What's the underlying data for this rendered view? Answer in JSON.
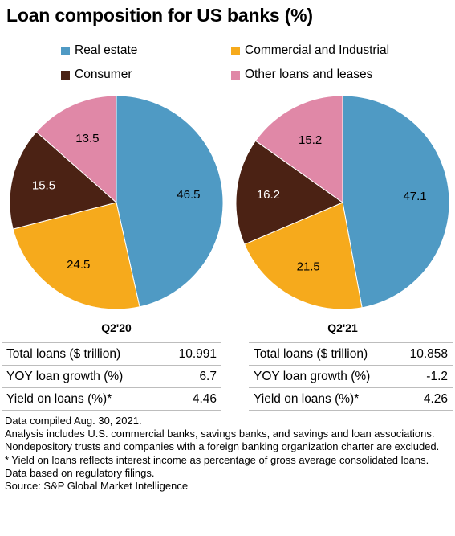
{
  "title": "Loan composition for US banks (%)",
  "legend": [
    {
      "label": "Real estate",
      "color": "#4f9ac4"
    },
    {
      "label": "Commercial and Industrial",
      "color": "#f6aa1c"
    },
    {
      "label": "Consumer",
      "color": "#4b2214"
    },
    {
      "label": "Other loans and leases",
      "color": "#e088a7"
    }
  ],
  "chart_data": [
    {
      "type": "pie",
      "title": "Q2'20",
      "categories": [
        "Real estate",
        "Commercial and Industrial",
        "Consumer",
        "Other loans and leases"
      ],
      "values": [
        46.5,
        24.5,
        15.5,
        13.5
      ],
      "labels": [
        "46.5",
        "24.5",
        "15.5",
        "13.5"
      ],
      "colors": [
        "#4f9ac4",
        "#f6aa1c",
        "#4b2214",
        "#e088a7"
      ]
    },
    {
      "type": "pie",
      "title": "Q2'21",
      "categories": [
        "Real estate",
        "Commercial and Industrial",
        "Consumer",
        "Other loans and leases"
      ],
      "values": [
        47.1,
        21.5,
        16.2,
        15.2
      ],
      "labels": [
        "47.1",
        "21.5",
        "16.2",
        "15.2"
      ],
      "colors": [
        "#4f9ac4",
        "#f6aa1c",
        "#4b2214",
        "#e088a7"
      ]
    }
  ],
  "stats": {
    "left": [
      {
        "label": "Total loans ($ trillion)",
        "value": "10.991"
      },
      {
        "label": "YOY loan growth (%)",
        "value": "6.7"
      },
      {
        "label": "Yield on loans (%)*",
        "value": "4.46"
      }
    ],
    "right": [
      {
        "label": "Total loans ($ trillion)",
        "value": "10.858"
      },
      {
        "label": "YOY loan growth (%)",
        "value": "-1.2"
      },
      {
        "label": "Yield on loans (%)*",
        "value": "4.26"
      }
    ]
  },
  "notes": [
    "Data compiled Aug. 30, 2021.",
    "Analysis includes U.S. commercial banks, savings banks, and savings and loan associations. Nondepository trusts and companies with a foreign banking organization charter are excluded.",
    "* Yield on loans reflects interest income as percentage of gross average consolidated loans.",
    "Data based on regulatory filings.",
    "Source: S&P Global Market Intelligence"
  ]
}
